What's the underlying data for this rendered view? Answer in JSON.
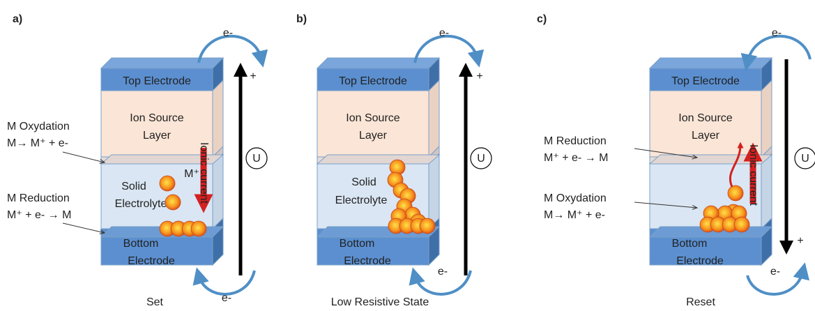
{
  "panels": [
    {
      "label": "a)",
      "caption": "Set",
      "top_electrode": "Top Electrode",
      "ion_source": [
        "Ion Source",
        "Layer"
      ],
      "electrolyte": [
        "Solid",
        "Electrolyte"
      ],
      "bottom_electrode": [
        "Bottom",
        "Electrode"
      ],
      "electron_top": "e-",
      "electron_bottom": "e-",
      "polarity": "+",
      "voltage": "U",
      "ion": "M⁺",
      "ionic_current": "Ionic current",
      "annotations": [
        {
          "lines": [
            "M Oxydation",
            "M→ M⁺ + e-"
          ]
        },
        {
          "lines": [
            "M Reduction",
            "M⁺ + e- → M"
          ]
        }
      ]
    },
    {
      "label": "b)",
      "caption": "Low Resistive State",
      "top_electrode": "Top Electrode",
      "ion_source": [
        "Ion Source",
        "Layer"
      ],
      "electrolyte": [
        "Solid",
        "Electrolyte"
      ],
      "bottom_electrode": [
        "Bottom",
        "Electrode"
      ],
      "electron_top": "e-",
      "electron_bottom": "e-",
      "polarity": "+",
      "voltage": "U"
    },
    {
      "label": "c)",
      "caption": "Reset",
      "top_electrode": "Top Electrode",
      "ion_source": [
        "Ion Source",
        "Layer"
      ],
      "bottom_electrode": [
        "Bottom",
        "Electrode"
      ],
      "electron_top": "e-",
      "electron_bottom": "e-",
      "polarity": "+",
      "voltage": "U",
      "ionic_current": "Ionic current",
      "annotations": [
        {
          "lines": [
            "M Reduction",
            "M⁺ + e- → M"
          ]
        },
        {
          "lines": [
            "M Oxydation",
            "M→ M⁺ + e-"
          ]
        }
      ]
    }
  ]
}
